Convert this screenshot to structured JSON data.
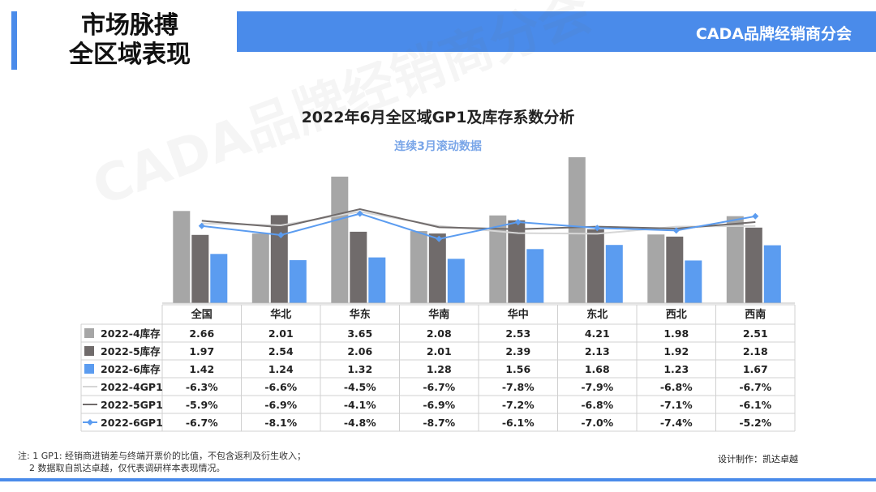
{
  "header": {
    "title_line1": "市场脉搏",
    "title_line2": "全区域表现",
    "banner": "CADA品牌经销商分会"
  },
  "watermark": "CADA品牌经销商分会",
  "chart_data": {
    "type": "bar",
    "title": "2022年6月全区域GP1及库存系数分析",
    "subtitle": "连续3月滚动数据",
    "categories": [
      "全国",
      "华北",
      "华东",
      "华南",
      "华中",
      "东北",
      "西北",
      "西南"
    ],
    "ylim_bars": [
      0,
      4.5
    ],
    "ylim_lines": [
      -12,
      -3
    ],
    "series": [
      {
        "name": "2022-4库存",
        "kind": "bar",
        "color": "#a6a6a6",
        "values": [
          2.66,
          2.01,
          3.65,
          2.08,
          2.53,
          4.21,
          1.98,
          2.51
        ],
        "labels": [
          "2.66",
          "2.01",
          "3.65",
          "2.08",
          "2.53",
          "4.21",
          "1.98",
          "2.51"
        ]
      },
      {
        "name": "2022-5库存",
        "kind": "bar",
        "color": "#706b6b",
        "values": [
          1.97,
          2.54,
          2.06,
          2.01,
          2.39,
          2.13,
          1.92,
          2.18
        ],
        "labels": [
          "1.97",
          "2.54",
          "2.06",
          "2.01",
          "2.39",
          "2.13",
          "1.92",
          "2.18"
        ]
      },
      {
        "name": "2022-6库存",
        "kind": "bar",
        "color": "#5b9cf0",
        "values": [
          1.42,
          1.24,
          1.32,
          1.28,
          1.56,
          1.68,
          1.23,
          1.67
        ],
        "labels": [
          "1.42",
          "1.24",
          "1.32",
          "1.28",
          "1.56",
          "1.68",
          "1.23",
          "1.67"
        ]
      },
      {
        "name": "2022-4GP1",
        "kind": "line",
        "color": "#d6d6d6",
        "values": [
          -6.3,
          -6.6,
          -4.5,
          -6.7,
          -7.8,
          -7.9,
          -6.8,
          -6.7
        ],
        "labels": [
          "-6.3%",
          "-6.6%",
          "-4.5%",
          "-6.7%",
          "-7.8%",
          "-7.9%",
          "-6.8%",
          "-6.7%"
        ]
      },
      {
        "name": "2022-5GP1",
        "kind": "line",
        "color": "#706b6b",
        "values": [
          -5.9,
          -6.9,
          -4.1,
          -6.9,
          -7.2,
          -6.8,
          -7.1,
          -6.1
        ],
        "labels": [
          "-5.9%",
          "-6.9%",
          "-4.1%",
          "-6.9%",
          "-7.2%",
          "-6.8%",
          "-7.1%",
          "-6.1%"
        ]
      },
      {
        "name": "2022-6GP1",
        "kind": "line",
        "color": "#5b9cf0",
        "marker": "diamond",
        "values": [
          -6.7,
          -8.1,
          -4.8,
          -8.7,
          -6.1,
          -7.0,
          -7.4,
          -5.2
        ],
        "labels": [
          "-6.7%",
          "-8.1%",
          "-4.8%",
          "-8.7%",
          "-6.1%",
          "-7.0%",
          "-7.4%",
          "-5.2%"
        ]
      }
    ]
  },
  "notes": {
    "line1": "注: 1 GP1: 经销商进销差与终端开票价的比值，不包含返利及衍生收入；",
    "line2": "2 数据取自凯达卓越，仅代表调研样本表现情况。"
  },
  "credit": "设计制作：凯达卓越"
}
